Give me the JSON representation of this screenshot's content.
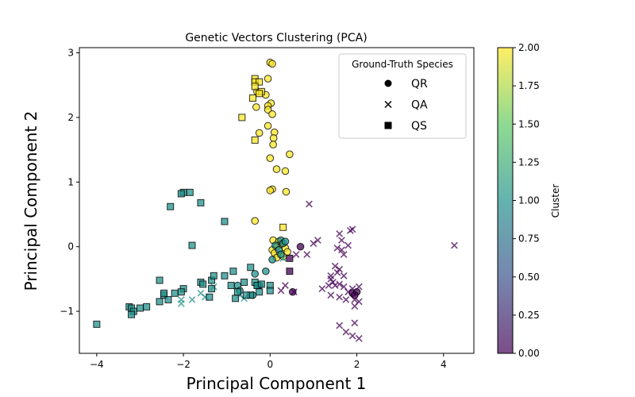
{
  "chart_data": {
    "type": "scatter",
    "title": "Genetic Vectors Clustering (PCA)",
    "xlabel": "Principal Component 1",
    "ylabel": "Principal Component 2",
    "xlim": [
      -4.4,
      4.7
    ],
    "ylim": [
      -1.65,
      3.08
    ],
    "xticks": [
      -4,
      -2,
      0,
      2,
      4
    ],
    "yticks": [
      -1,
      0,
      1,
      2,
      3
    ],
    "grid": false,
    "legend": {
      "title": "Ground-Truth Species",
      "placement": "top-right",
      "entries": [
        {
          "label": "QR",
          "marker": "circle"
        },
        {
          "label": "QA",
          "marker": "x"
        },
        {
          "label": "QS",
          "marker": "square"
        }
      ]
    },
    "colorbar": {
      "label": "Cluster",
      "min": 0.0,
      "max": 2.0,
      "ticks": [
        "0.00",
        "0.25",
        "0.50",
        "0.75",
        "1.00",
        "1.25",
        "1.50",
        "1.75",
        "2.00"
      ],
      "colormap": [
        "#440154",
        "#3b528b",
        "#21918c",
        "#5ec962",
        "#fde725"
      ]
    },
    "series": [
      {
        "name": "QR",
        "marker": "circle",
        "points": [
          [
            0.0,
            2.85,
            2
          ],
          [
            0.05,
            2.83,
            2
          ],
          [
            -0.05,
            2.6,
            2
          ],
          [
            -0.3,
            2.4,
            2
          ],
          [
            -0.1,
            2.35,
            2
          ],
          [
            0.02,
            2.22,
            2
          ],
          [
            -0.05,
            2.18,
            2
          ],
          [
            -0.32,
            2.16,
            2
          ],
          [
            -0.05,
            2.12,
            2
          ],
          [
            0.05,
            2.05,
            2
          ],
          [
            -0.05,
            1.87,
            2
          ],
          [
            0.1,
            1.77,
            2
          ],
          [
            -0.25,
            1.76,
            2
          ],
          [
            0.08,
            1.68,
            2
          ],
          [
            0.07,
            1.58,
            2
          ],
          [
            0.45,
            1.43,
            2
          ],
          [
            0.0,
            1.37,
            2
          ],
          [
            0.15,
            1.2,
            2
          ],
          [
            0.35,
            1.17,
            2
          ],
          [
            0.05,
            0.89,
            2
          ],
          [
            0.0,
            0.87,
            2
          ],
          [
            0.37,
            0.85,
            2
          ],
          [
            -0.35,
            0.4,
            2
          ],
          [
            0.07,
            0.1,
            2
          ],
          [
            0.2,
            0.08,
            2
          ],
          [
            0.25,
            0.04,
            2
          ],
          [
            0.15,
            0.0,
            2
          ],
          [
            0.35,
            -0.02,
            2
          ],
          [
            0.05,
            -0.05,
            2
          ],
          [
            0.1,
            -0.1,
            2
          ],
          [
            0.22,
            -0.12,
            2
          ],
          [
            0.3,
            -0.15,
            2
          ],
          [
            0.15,
            -0.17,
            2
          ],
          [
            0.4,
            -0.08,
            2
          ],
          [
            0.25,
            0.1,
            1
          ],
          [
            0.3,
            0.05,
            1
          ],
          [
            0.12,
            0.02,
            1
          ],
          [
            0.35,
            0.08,
            1
          ],
          [
            0.2,
            -0.05,
            1
          ],
          [
            0.25,
            -0.12,
            1
          ],
          [
            0.05,
            -0.2,
            1
          ],
          [
            -0.1,
            -0.38,
            1
          ],
          [
            -0.35,
            -0.42,
            1
          ],
          [
            -0.3,
            -0.6,
            1
          ],
          [
            -0.75,
            -0.6,
            1
          ],
          [
            -0.7,
            -0.68,
            1
          ],
          [
            -0.4,
            -0.75,
            1
          ],
          [
            -0.25,
            -0.6,
            1
          ],
          [
            0.7,
            0.0,
            0
          ],
          [
            0.52,
            -0.7,
            0
          ],
          [
            1.9,
            -0.72,
            0
          ],
          [
            2.0,
            -0.7,
            0
          ],
          [
            1.95,
            -0.75,
            0
          ]
        ]
      },
      {
        "name": "QA",
        "marker": "x",
        "points": [
          [
            -2.05,
            -0.82,
            1
          ],
          [
            -2.05,
            -0.88,
            1
          ],
          [
            -1.8,
            -0.82,
            1
          ],
          [
            -1.6,
            -0.72,
            1
          ],
          [
            -1.5,
            -0.78,
            1
          ],
          [
            -1.3,
            -0.62,
            1
          ],
          [
            -0.7,
            -0.75,
            1
          ],
          [
            -0.6,
            -0.8,
            1
          ],
          [
            0.3,
            -0.18,
            1
          ],
          [
            0.9,
            0.66,
            0
          ],
          [
            1.85,
            0.25,
            0
          ],
          [
            1.9,
            0.27,
            0
          ],
          [
            1.6,
            0.2,
            0
          ],
          [
            1.65,
            0.1,
            0
          ],
          [
            1.1,
            0.1,
            0
          ],
          [
            1.0,
            0.05,
            0
          ],
          [
            1.8,
            0.02,
            0
          ],
          [
            1.55,
            -0.02,
            0
          ],
          [
            1.65,
            -0.05,
            0
          ],
          [
            1.7,
            -0.12,
            0
          ],
          [
            0.85,
            -0.12,
            0
          ],
          [
            0.6,
            -0.12,
            0
          ],
          [
            1.5,
            -0.3,
            0
          ],
          [
            1.6,
            -0.35,
            0
          ],
          [
            1.55,
            -0.4,
            0
          ],
          [
            1.7,
            -0.45,
            0
          ],
          [
            1.4,
            -0.45,
            0
          ],
          [
            1.4,
            -0.5,
            0
          ],
          [
            1.45,
            -0.55,
            0
          ],
          [
            1.35,
            -0.6,
            0
          ],
          [
            1.5,
            -0.6,
            0
          ],
          [
            1.6,
            -0.58,
            0
          ],
          [
            1.7,
            -0.62,
            0
          ],
          [
            1.8,
            -0.7,
            0
          ],
          [
            1.9,
            -0.65,
            0
          ],
          [
            2.05,
            -0.62,
            0
          ],
          [
            1.2,
            -0.65,
            0
          ],
          [
            1.4,
            -0.75,
            0
          ],
          [
            1.6,
            -0.78,
            0
          ],
          [
            1.75,
            -0.82,
            0
          ],
          [
            1.95,
            -0.82,
            0
          ],
          [
            2.05,
            -0.85,
            0
          ],
          [
            1.95,
            -0.92,
            0
          ],
          [
            0.25,
            -0.68,
            0
          ],
          [
            0.35,
            -0.6,
            0
          ],
          [
            0.55,
            -0.7,
            0
          ],
          [
            1.6,
            -1.22,
            0
          ],
          [
            1.75,
            -1.32,
            0
          ],
          [
            1.9,
            -1.38,
            0
          ],
          [
            2.05,
            -1.42,
            0
          ],
          [
            1.95,
            -1.18,
            0
          ],
          [
            4.25,
            0.02,
            0
          ]
        ]
      },
      {
        "name": "QS",
        "marker": "square",
        "points": [
          [
            -0.35,
            2.6,
            2
          ],
          [
            -0.35,
            2.55,
            2
          ],
          [
            -0.25,
            2.55,
            2
          ],
          [
            -0.35,
            2.48,
            2
          ],
          [
            -0.2,
            2.4,
            2
          ],
          [
            -0.25,
            2.37,
            2
          ],
          [
            -0.4,
            2.3,
            2
          ],
          [
            -0.65,
            2.0,
            2
          ],
          [
            -0.35,
            1.65,
            2
          ],
          [
            0.3,
            0.3,
            2
          ],
          [
            -2.0,
            0.84,
            1
          ],
          [
            -2.05,
            0.82,
            1
          ],
          [
            -1.85,
            0.84,
            1
          ],
          [
            -2.3,
            0.62,
            1
          ],
          [
            -1.6,
            0.68,
            1
          ],
          [
            -1.8,
            0.02,
            1
          ],
          [
            -1.05,
            0.39,
            1
          ],
          [
            -2.55,
            -0.52,
            1
          ],
          [
            -2.45,
            -0.75,
            1
          ],
          [
            -2.55,
            -0.85,
            1
          ],
          [
            -2.35,
            -0.82,
            1
          ],
          [
            -2.2,
            -0.72,
            1
          ],
          [
            -2.45,
            -0.72,
            1
          ],
          [
            -2.0,
            -0.65,
            1
          ],
          [
            -1.6,
            -0.55,
            1
          ],
          [
            -1.55,
            -0.58,
            1
          ],
          [
            -1.35,
            -0.52,
            1
          ],
          [
            -1.3,
            -0.45,
            1
          ],
          [
            -1.35,
            -0.65,
            1
          ],
          [
            -1.4,
            -0.78,
            1
          ],
          [
            -1.05,
            -0.45,
            1
          ],
          [
            -0.9,
            -0.6,
            1
          ],
          [
            -0.75,
            -0.7,
            1
          ],
          [
            -0.8,
            -0.8,
            1
          ],
          [
            -0.6,
            -0.55,
            1
          ],
          [
            -0.45,
            -0.32,
            1
          ],
          [
            -0.35,
            -0.55,
            1
          ],
          [
            -0.3,
            -0.6,
            1
          ],
          [
            -0.2,
            -0.58,
            1
          ],
          [
            -0.25,
            -0.7,
            1
          ],
          [
            -0.45,
            -0.75,
            1
          ],
          [
            -0.55,
            -0.75,
            1
          ],
          [
            -0.0,
            -0.6,
            1
          ],
          [
            0.0,
            -0.68,
            1
          ],
          [
            -0.85,
            -0.38,
            1
          ],
          [
            -2.85,
            -0.93,
            1
          ],
          [
            -3.0,
            -0.95,
            1
          ],
          [
            -3.25,
            -0.93,
            1
          ],
          [
            -3.2,
            -0.95,
            1
          ],
          [
            -3.15,
            -1.0,
            1
          ],
          [
            -3.2,
            -1.05,
            1
          ],
          [
            -2.05,
            -0.7,
            1
          ],
          [
            -4.0,
            -1.2,
            1
          ],
          [
            0.45,
            -0.18,
            0
          ],
          [
            0.45,
            -0.38,
            0
          ]
        ]
      }
    ]
  }
}
